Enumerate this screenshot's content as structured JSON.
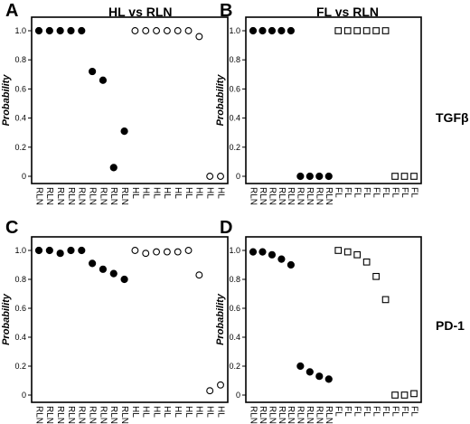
{
  "row_labels": [
    "TGFβ",
    "PD-1"
  ],
  "chart_data": [
    {
      "letter": "A",
      "title": "HL vs  RLN",
      "type": "scatter",
      "ylabel": "Probability",
      "yticks": [
        "0",
        "0.2",
        "0.4",
        "0.6",
        "0.8",
        "1.0"
      ],
      "ylim": [
        0,
        1.0
      ],
      "categories": [
        "RLN",
        "RLN",
        "RLN",
        "RLN",
        "RLN",
        "RLN",
        "RLN",
        "RLN",
        "RLN",
        "HL",
        "HL",
        "HL",
        "HL",
        "HL",
        "HL",
        "HL",
        "HL",
        "HL"
      ],
      "series": [
        {
          "marker": "filled-circle",
          "x_index": [
            0,
            1,
            2,
            3,
            4,
            5,
            6,
            7,
            8
          ],
          "values": [
            1.0,
            1.0,
            1.0,
            1.0,
            1.0,
            0.72,
            0.66,
            0.06,
            0.31
          ]
        },
        {
          "marker": "open-circle",
          "x_index": [
            9,
            10,
            11,
            12,
            13,
            14,
            15,
            16,
            17
          ],
          "values": [
            1.0,
            1.0,
            1.0,
            1.0,
            1.0,
            1.0,
            0.96,
            0.0,
            0.0
          ]
        }
      ]
    },
    {
      "letter": "B",
      "title": "FL vs  RLN",
      "type": "scatter",
      "ylabel": "Probability",
      "yticks": [
        "0",
        "0.2",
        "0.4",
        "0.6",
        "0.8",
        "1.0"
      ],
      "ylim": [
        0,
        1.0
      ],
      "categories": [
        "RLN",
        "RLN",
        "RLN",
        "RLN",
        "RLN",
        "RLN",
        "RLN",
        "RLN",
        "RLN",
        "FL",
        "FL",
        "FL",
        "FL",
        "FL",
        "FL",
        "FL",
        "FL",
        "FL"
      ],
      "series": [
        {
          "marker": "filled-circle",
          "x_index": [
            0,
            1,
            2,
            3,
            4,
            5,
            6,
            7,
            8
          ],
          "values": [
            1.0,
            1.0,
            1.0,
            1.0,
            1.0,
            0.0,
            0.0,
            0.0,
            0.0
          ]
        },
        {
          "marker": "open-square",
          "x_index": [
            9,
            10,
            11,
            12,
            13,
            14,
            15,
            16,
            17
          ],
          "values": [
            1.0,
            1.0,
            1.0,
            1.0,
            1.0,
            1.0,
            0.0,
            0.0,
            0.0
          ]
        }
      ]
    },
    {
      "letter": "C",
      "title": "",
      "type": "scatter",
      "ylabel": "Probability",
      "yticks": [
        "0",
        "0.2",
        "0.4",
        "0.6",
        "0.8",
        "1.0"
      ],
      "ylim": [
        0,
        1.0
      ],
      "categories": [
        "RLN",
        "RLN",
        "RLN",
        "RLN",
        "RLN",
        "RLN",
        "RLN",
        "RLN",
        "RLN",
        "HL",
        "HL",
        "HL",
        "HL",
        "HL",
        "HL",
        "HL",
        "HL",
        "HL"
      ],
      "series": [
        {
          "marker": "filled-circle",
          "x_index": [
            0,
            1,
            2,
            3,
            4,
            5,
            6,
            7,
            8
          ],
          "values": [
            1.0,
            1.0,
            0.98,
            1.0,
            1.0,
            0.91,
            0.87,
            0.84,
            0.8
          ]
        },
        {
          "marker": "open-circle",
          "x_index": [
            9,
            10,
            11,
            12,
            13,
            14,
            15,
            16,
            17
          ],
          "values": [
            1.0,
            0.98,
            0.99,
            0.99,
            0.99,
            1.0,
            0.83,
            0.03,
            0.07
          ]
        }
      ]
    },
    {
      "letter": "D",
      "title": "",
      "type": "scatter",
      "ylabel": "Probability",
      "yticks": [
        "0",
        "0.2",
        "0.4",
        "0.6",
        "0.8",
        "1.0"
      ],
      "ylim": [
        0,
        1.0
      ],
      "categories": [
        "RLN",
        "RLN",
        "RLN",
        "RLN",
        "RLN",
        "RLN",
        "RLN",
        "RLN",
        "RLN",
        "FL",
        "FL",
        "FL",
        "FL",
        "FL",
        "FL",
        "FL",
        "FL",
        "FL"
      ],
      "series": [
        {
          "marker": "filled-circle",
          "x_index": [
            0,
            1,
            2,
            3,
            4,
            5,
            6,
            7,
            8
          ],
          "values": [
            0.99,
            0.99,
            0.97,
            0.94,
            0.9,
            0.2,
            0.16,
            0.13,
            0.11
          ]
        },
        {
          "marker": "open-square",
          "x_index": [
            9,
            10,
            11,
            12,
            13,
            14,
            15,
            16,
            17
          ],
          "values": [
            1.0,
            0.99,
            0.97,
            0.92,
            0.82,
            0.66,
            0.0,
            0.0,
            0.01
          ]
        }
      ]
    }
  ]
}
